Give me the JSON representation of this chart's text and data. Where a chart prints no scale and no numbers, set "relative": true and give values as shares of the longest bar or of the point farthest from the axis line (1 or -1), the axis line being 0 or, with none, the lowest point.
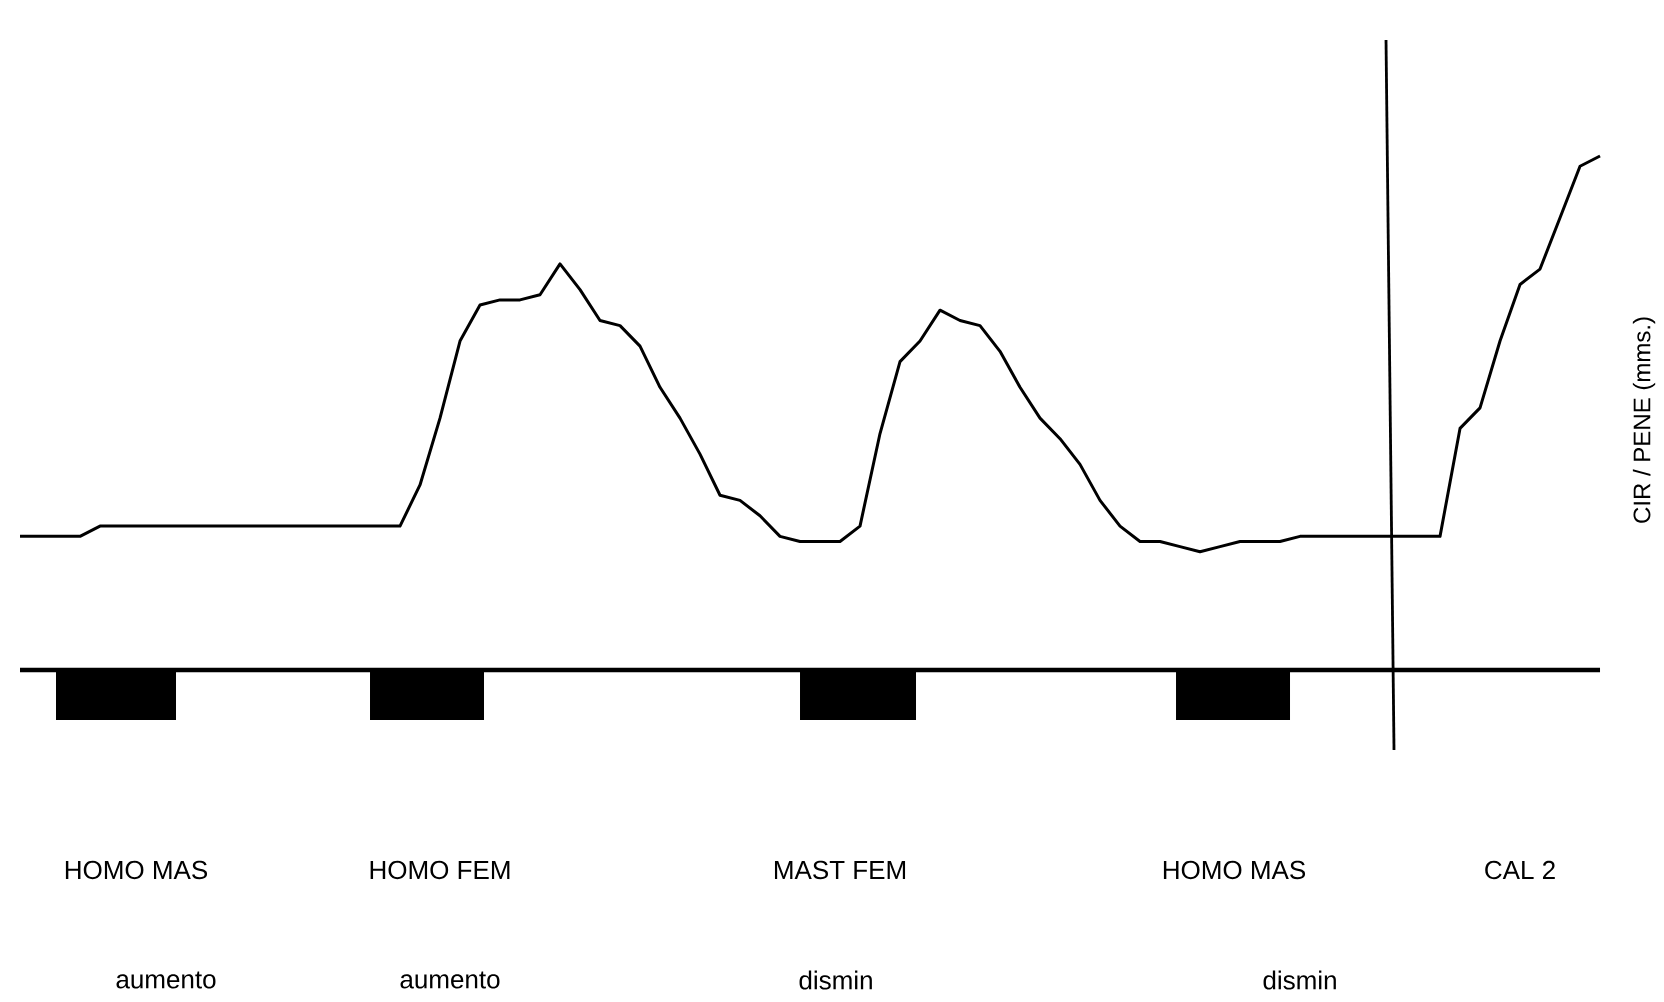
{
  "chart_data": {
    "type": "line",
    "relative": true,
    "ylabel": "CIR / PENE (mms.)",
    "categories": [
      null,
      null,
      null,
      null,
      null,
      null,
      null,
      null,
      null,
      null,
      null,
      null,
      null,
      null,
      null,
      null,
      null,
      null,
      null,
      null,
      null,
      null,
      null,
      null,
      null,
      null,
      null,
      null,
      null,
      null,
      null,
      null,
      null,
      null,
      null,
      null,
      null,
      null,
      null,
      null,
      null,
      null,
      null,
      null,
      null,
      null,
      null,
      null,
      null,
      null,
      null,
      null,
      null,
      null,
      null,
      null,
      null,
      null,
      null,
      null,
      null,
      null,
      null,
      null,
      null,
      null,
      null,
      null,
      null,
      null,
      null,
      null,
      null,
      null,
      null,
      null,
      null,
      null,
      null,
      null
    ],
    "values": [
      0.26,
      0.26,
      0.26,
      0.26,
      0.28,
      0.28,
      0.28,
      0.28,
      0.28,
      0.28,
      0.28,
      0.28,
      0.28,
      0.28,
      0.28,
      0.28,
      0.28,
      0.28,
      0.28,
      0.28,
      0.36,
      0.49,
      0.64,
      0.71,
      0.72,
      0.72,
      0.73,
      0.79,
      0.74,
      0.68,
      0.67,
      0.63,
      0.55,
      0.49,
      0.42,
      0.34,
      0.33,
      0.3,
      0.26,
      0.25,
      0.25,
      0.25,
      0.28,
      0.46,
      0.6,
      0.64,
      0.7,
      0.68,
      0.67,
      0.62,
      0.55,
      0.49,
      0.45,
      0.4,
      0.33,
      0.28,
      0.25,
      0.25,
      0.24,
      0.23,
      0.24,
      0.25,
      0.25,
      0.25,
      0.26,
      0.26,
      0.26,
      0.26,
      0.26,
      0.26,
      0.26,
      0.26,
      0.47,
      0.51,
      0.64,
      0.75,
      0.78,
      0.88,
      0.98,
      1
    ],
    "color": "#000000",
    "line_style": "solid",
    "marker": "none",
    "annotations": [
      "HOMO MAS",
      "HOMO FEM",
      "MAST FEM",
      "HOMO MAS",
      "CAL 2",
      "aumento",
      "aumento",
      "dismin",
      "dismin"
    ]
  }
}
